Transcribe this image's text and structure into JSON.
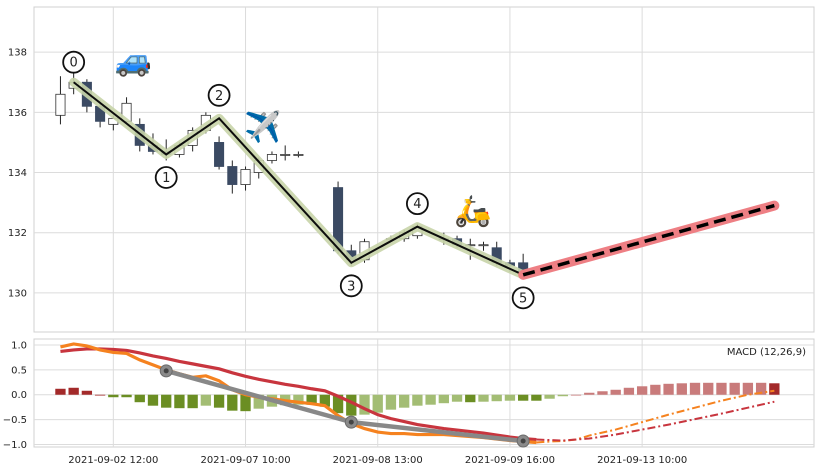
{
  "chart_data": [
    {
      "type": "candlestick",
      "panel": "price",
      "ylim": [
        128.7,
        139.5
      ],
      "yticks": [
        130,
        132,
        134,
        136,
        138
      ],
      "grid": true,
      "colors": {
        "up_fill": "#ffffff",
        "down_fill": "#3b4a63",
        "wick": "#222222",
        "path_line": "#0d0d0d",
        "path_glow": "#c8d4a8",
        "projection_glow": "#ee7f84",
        "projection_line": "#000000"
      },
      "candles": [
        {
          "x": 1,
          "o": 135.9,
          "h": 137.2,
          "l": 135.6,
          "c": 136.6
        },
        {
          "x": 2,
          "o": 136.8,
          "h": 137.3,
          "l": 136.6,
          "c": 137.0
        },
        {
          "x": 3,
          "o": 137.0,
          "h": 137.1,
          "l": 136.0,
          "c": 136.2
        },
        {
          "x": 4,
          "o": 136.2,
          "h": 136.4,
          "l": 135.5,
          "c": 135.7
        },
        {
          "x": 5,
          "o": 135.6,
          "h": 135.9,
          "l": 135.4,
          "c": 135.8
        },
        {
          "x": 6,
          "o": 135.7,
          "h": 136.5,
          "l": 135.6,
          "c": 136.3
        },
        {
          "x": 7,
          "o": 135.6,
          "h": 135.8,
          "l": 134.7,
          "c": 134.9
        },
        {
          "x": 8,
          "o": 134.9,
          "h": 135.3,
          "l": 134.6,
          "c": 134.7
        },
        {
          "x": 9,
          "o": 134.7,
          "h": 135.1,
          "l": 134.4,
          "c": 134.6
        },
        {
          "x": 10,
          "o": 134.6,
          "h": 135.0,
          "l": 134.5,
          "c": 134.9
        },
        {
          "x": 11,
          "o": 134.9,
          "h": 135.5,
          "l": 134.7,
          "c": 135.4
        },
        {
          "x": 12,
          "o": 135.4,
          "h": 136.0,
          "l": 135.3,
          "c": 135.9
        },
        {
          "x": 13,
          "o": 135.0,
          "h": 135.2,
          "l": 134.1,
          "c": 134.2
        },
        {
          "x": 14,
          "o": 134.2,
          "h": 134.4,
          "l": 133.3,
          "c": 133.6
        },
        {
          "x": 15,
          "o": 133.6,
          "h": 134.2,
          "l": 133.4,
          "c": 134.1
        },
        {
          "x": 16,
          "o": 134.0,
          "h": 134.5,
          "l": 133.8,
          "c": 134.4
        },
        {
          "x": 17,
          "o": 134.4,
          "h": 134.7,
          "l": 134.3,
          "c": 134.6
        },
        {
          "x": 18,
          "o": 134.6,
          "h": 134.9,
          "l": 134.4,
          "c": 134.6
        },
        {
          "x": 19,
          "o": 134.6,
          "h": 134.7,
          "l": 134.5,
          "c": 134.6
        },
        {
          "x": 22,
          "o": 133.5,
          "h": 133.7,
          "l": 131.3,
          "c": 131.4
        },
        {
          "x": 23,
          "o": 131.4,
          "h": 131.6,
          "l": 130.9,
          "c": 131.1
        },
        {
          "x": 24,
          "o": 131.1,
          "h": 131.8,
          "l": 131.0,
          "c": 131.7
        },
        {
          "x": 26,
          "o": 131.8,
          "h": 131.9,
          "l": 131.7,
          "c": 131.8
        },
        {
          "x": 27,
          "o": 131.8,
          "h": 132.1,
          "l": 131.7,
          "c": 132.0
        },
        {
          "x": 28,
          "o": 131.9,
          "h": 132.3,
          "l": 131.8,
          "c": 132.2
        },
        {
          "x": 30,
          "o": 131.8,
          "h": 132.0,
          "l": 131.6,
          "c": 131.8
        },
        {
          "x": 31,
          "o": 131.8,
          "h": 131.9,
          "l": 131.5,
          "c": 131.6
        },
        {
          "x": 32,
          "o": 131.6,
          "h": 131.8,
          "l": 131.1,
          "c": 131.6
        },
        {
          "x": 33,
          "o": 131.6,
          "h": 131.7,
          "l": 131.4,
          "c": 131.6
        },
        {
          "x": 34,
          "o": 131.5,
          "h": 131.7,
          "l": 130.9,
          "c": 131.0
        },
        {
          "x": 35,
          "o": 131.0,
          "h": 131.1,
          "l": 130.7,
          "c": 130.9
        },
        {
          "x": 36,
          "o": 131.0,
          "h": 131.3,
          "l": 130.6,
          "c": 130.7
        }
      ],
      "path_points": [
        {
          "label": "0",
          "x": 2,
          "y": 137.0,
          "label_dy": 137.4,
          "label_side": "above"
        },
        {
          "label": "1",
          "x": 9,
          "y": 134.6,
          "label_dy": 134.1,
          "label_side": "below"
        },
        {
          "label": "2",
          "x": 13,
          "y": 135.8,
          "label_dy": 136.3,
          "label_side": "above"
        },
        {
          "label": "3",
          "x": 23,
          "y": 131.0,
          "label_dy": 130.5,
          "label_side": "below"
        },
        {
          "label": "4",
          "x": 28,
          "y": 132.2,
          "label_dy": 132.7,
          "label_side": "above"
        },
        {
          "label": "5",
          "x": 36,
          "y": 130.6,
          "label_dy": 130.1,
          "label_side": "below"
        }
      ],
      "projection": {
        "x0": 36,
        "y0": 130.6,
        "x1": 55,
        "y1": 132.9
      },
      "icons": [
        {
          "name": "car-icon",
          "glyph": "🚙",
          "x": 6.5,
          "y": 137.7
        },
        {
          "name": "airplane-icon",
          "glyph": "✈️",
          "x": 16.3,
          "y": 135.5
        },
        {
          "name": "scooter-icon",
          "glyph": "🛵",
          "x": 32.2,
          "y": 132.7
        }
      ]
    },
    {
      "type": "macd",
      "panel": "indicator",
      "legend": "MACD (12,26,9)",
      "legend_position": "top-right",
      "ylim": [
        -1.05,
        1.12
      ],
      "yticks": [
        -1.0,
        -0.5,
        0.0,
        0.5,
        1.0
      ],
      "ytick_labels": [
        "−1.0",
        "−0.5",
        "0.0",
        "0.5",
        "1.0"
      ],
      "grid": true,
      "macd_line": {
        "color": "#f5821f",
        "points": [
          [
            1,
            0.96
          ],
          [
            2,
            1.02
          ],
          [
            3,
            0.98
          ],
          [
            4,
            0.9
          ],
          [
            5,
            0.85
          ],
          [
            6,
            0.83
          ],
          [
            7,
            0.7
          ],
          [
            8,
            0.6
          ],
          [
            9,
            0.5
          ],
          [
            10,
            0.42
          ],
          [
            11,
            0.35
          ],
          [
            12,
            0.38
          ],
          [
            13,
            0.28
          ],
          [
            14,
            0.1
          ],
          [
            15,
            0.0
          ],
          [
            16,
            -0.05
          ],
          [
            17,
            -0.08
          ],
          [
            18,
            -0.12
          ],
          [
            19,
            -0.15
          ],
          [
            20,
            -0.18
          ],
          [
            21,
            -0.22
          ],
          [
            22,
            -0.42
          ],
          [
            23,
            -0.58
          ],
          [
            24,
            -0.68
          ],
          [
            25,
            -0.75
          ],
          [
            26,
            -0.78
          ],
          [
            27,
            -0.78
          ],
          [
            28,
            -0.8
          ],
          [
            29,
            -0.8
          ],
          [
            30,
            -0.8
          ],
          [
            31,
            -0.82
          ],
          [
            32,
            -0.84
          ],
          [
            33,
            -0.86
          ],
          [
            34,
            -0.89
          ],
          [
            35,
            -0.92
          ],
          [
            36,
            -0.94
          ],
          [
            37,
            -0.96
          ]
        ]
      },
      "macd_projection": {
        "color": "#f5821f",
        "points": [
          [
            37,
            -0.96
          ],
          [
            38,
            -0.94
          ],
          [
            39,
            -0.93
          ],
          [
            40,
            -0.9
          ],
          [
            41,
            -0.82
          ],
          [
            43,
            -0.7
          ],
          [
            45,
            -0.55
          ],
          [
            47,
            -0.4
          ],
          [
            49,
            -0.26
          ],
          [
            51,
            -0.12
          ],
          [
            53,
            0.0
          ],
          [
            55,
            0.08
          ]
        ]
      },
      "signal_line": {
        "color": "#c8353e",
        "points": [
          [
            1,
            0.87
          ],
          [
            2,
            0.9
          ],
          [
            3,
            0.92
          ],
          [
            4,
            0.92
          ],
          [
            5,
            0.91
          ],
          [
            6,
            0.89
          ],
          [
            7,
            0.84
          ],
          [
            8,
            0.78
          ],
          [
            9,
            0.73
          ],
          [
            10,
            0.67
          ],
          [
            11,
            0.62
          ],
          [
            12,
            0.57
          ],
          [
            13,
            0.52
          ],
          [
            14,
            0.44
          ],
          [
            15,
            0.37
          ],
          [
            16,
            0.31
          ],
          [
            17,
            0.26
          ],
          [
            18,
            0.21
          ],
          [
            19,
            0.17
          ],
          [
            20,
            0.12
          ],
          [
            21,
            0.08
          ],
          [
            22,
            -0.03
          ],
          [
            23,
            -0.15
          ],
          [
            24,
            -0.28
          ],
          [
            25,
            -0.4
          ],
          [
            26,
            -0.48
          ],
          [
            27,
            -0.54
          ],
          [
            28,
            -0.6
          ],
          [
            29,
            -0.64
          ],
          [
            30,
            -0.68
          ],
          [
            31,
            -0.71
          ],
          [
            32,
            -0.74
          ],
          [
            33,
            -0.77
          ],
          [
            34,
            -0.81
          ],
          [
            35,
            -0.85
          ],
          [
            36,
            -0.88
          ],
          [
            37,
            -0.9
          ]
        ]
      },
      "signal_projection": {
        "color": "#c8353e",
        "points": [
          [
            37,
            -0.9
          ],
          [
            39,
            -0.92
          ],
          [
            41,
            -0.88
          ],
          [
            43,
            -0.8
          ],
          [
            45,
            -0.7
          ],
          [
            47,
            -0.6
          ],
          [
            49,
            -0.49
          ],
          [
            51,
            -0.38
          ],
          [
            53,
            -0.26
          ],
          [
            55,
            -0.14
          ]
        ]
      },
      "histogram": {
        "positive_strong": "#a32a2a",
        "positive_light": "#c97b7b",
        "negative_strong": "#6b8e23",
        "negative_light": "#a3bd74",
        "bars": [
          [
            1,
            0.12
          ],
          [
            2,
            0.14
          ],
          [
            3,
            0.08
          ],
          [
            4,
            0.0
          ],
          [
            5,
            -0.05
          ],
          [
            6,
            -0.05
          ],
          [
            7,
            -0.15
          ],
          [
            8,
            -0.22
          ],
          [
            9,
            -0.26
          ],
          [
            10,
            -0.27
          ],
          [
            11,
            -0.27
          ],
          [
            12,
            -0.22
          ],
          [
            13,
            -0.26
          ],
          [
            14,
            -0.32
          ],
          [
            15,
            -0.33
          ],
          [
            16,
            -0.28
          ],
          [
            17,
            -0.24
          ],
          [
            18,
            -0.21
          ],
          [
            19,
            -0.2
          ],
          [
            20,
            -0.2
          ],
          [
            21,
            -0.24
          ],
          [
            22,
            -0.37
          ],
          [
            23,
            -0.42
          ],
          [
            24,
            -0.4
          ],
          [
            25,
            -0.36
          ],
          [
            26,
            -0.3
          ],
          [
            27,
            -0.26
          ],
          [
            28,
            -0.22
          ],
          [
            29,
            -0.2
          ],
          [
            30,
            -0.17
          ],
          [
            31,
            -0.14
          ],
          [
            32,
            -0.15
          ],
          [
            33,
            -0.14
          ],
          [
            34,
            -0.13
          ],
          [
            35,
            -0.12
          ],
          [
            36,
            -0.12
          ],
          [
            37,
            -0.12
          ],
          [
            38,
            -0.08
          ],
          [
            39,
            -0.03
          ],
          [
            40,
            0.0
          ],
          [
            41,
            0.04
          ],
          [
            42,
            0.07
          ],
          [
            43,
            0.1
          ],
          [
            44,
            0.14
          ],
          [
            45,
            0.17
          ],
          [
            46,
            0.2
          ],
          [
            47,
            0.22
          ],
          [
            48,
            0.23
          ],
          [
            49,
            0.24
          ],
          [
            50,
            0.24
          ],
          [
            51,
            0.24
          ],
          [
            52,
            0.24
          ],
          [
            53,
            0.24
          ],
          [
            54,
            0.24
          ],
          [
            55,
            0.23
          ]
        ]
      },
      "trend_line": {
        "color": "#888888",
        "points": [
          [
            9,
            0.48
          ],
          [
            23,
            -0.55
          ],
          [
            36,
            -0.93
          ]
        ]
      }
    }
  ],
  "x_axis": {
    "range": [
      -1,
      58
    ],
    "ticks": [
      {
        "x": 5,
        "label": "2021-09-02 12:00"
      },
      {
        "x": 15,
        "label": "2021-09-07 10:00"
      },
      {
        "x": 25,
        "label": "2021-09-08 13:00"
      },
      {
        "x": 35,
        "label": "2021-09-09 16:00"
      },
      {
        "x": 45,
        "label": "2021-09-13 10:00"
      }
    ]
  }
}
